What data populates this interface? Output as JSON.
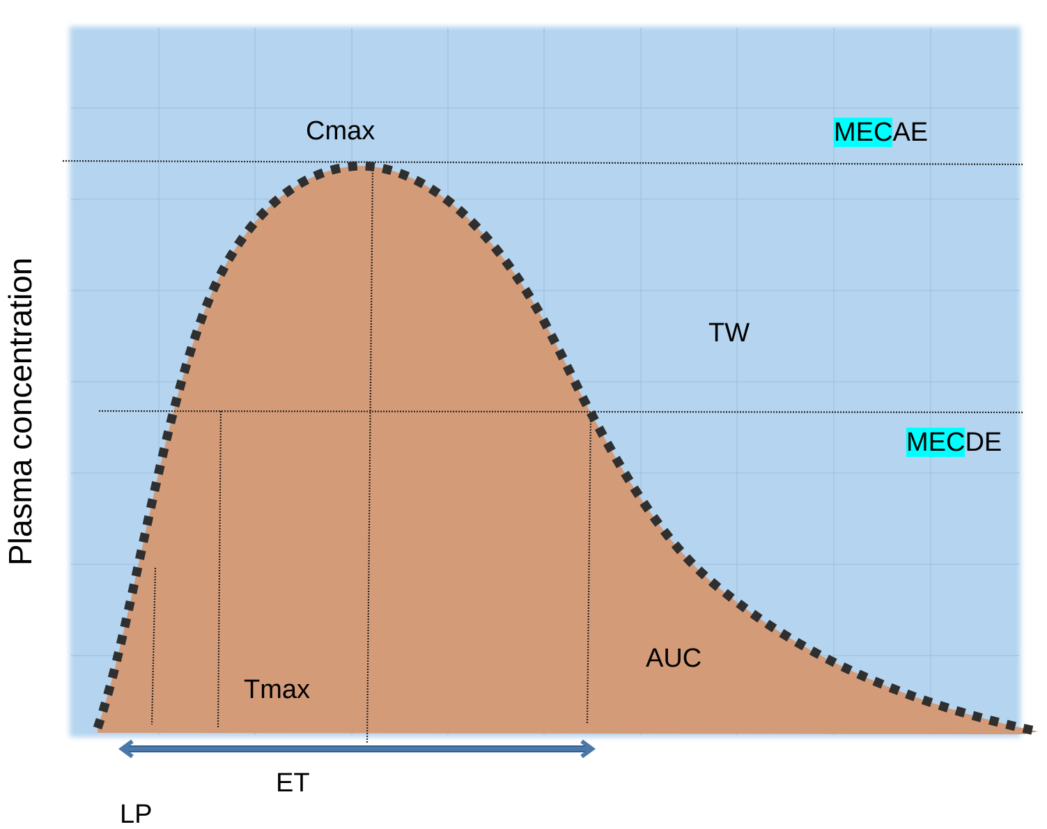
{
  "labels": {
    "y_axis": "Plasma concentration",
    "cmax": "Cmax",
    "mec_ae_hl": "MEC",
    "mec_ae_rest": "AE",
    "mec_de_hl": "MEC",
    "mec_de_rest": "DE",
    "tw": "TW",
    "auc": "AUC",
    "tmax": "Tmax",
    "et": "ET",
    "lp": "LP"
  },
  "colors": {
    "plot_background": "#b4d4ef",
    "grid": "#a3c4e2",
    "area_fill": "#d49b78",
    "curve_dots": "#2f2f2f",
    "arrow": "#4a78a8",
    "highlight": "#00ffff"
  }
}
